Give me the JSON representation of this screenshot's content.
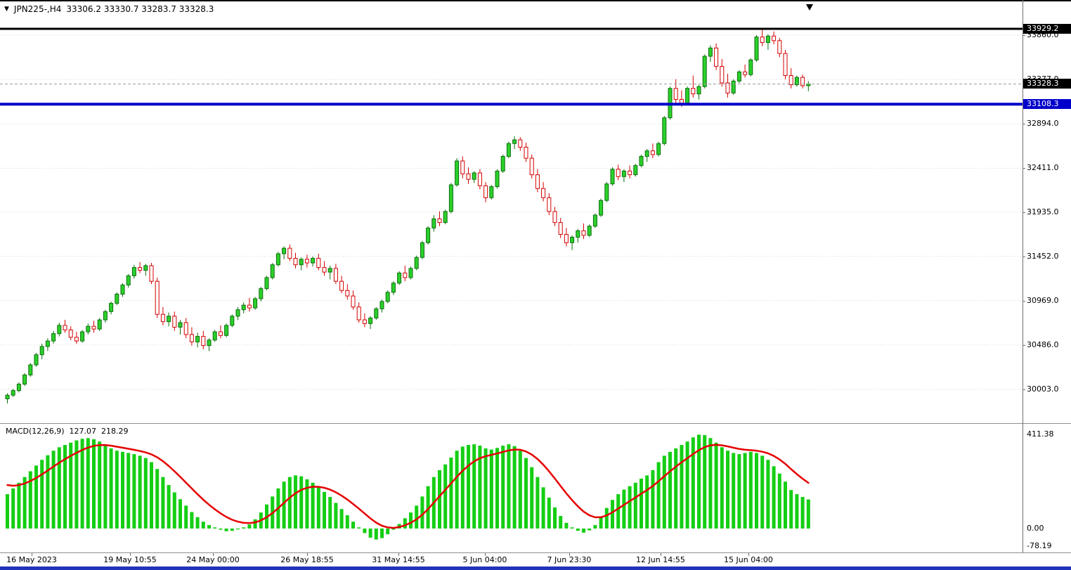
{
  "header": {
    "symbol_timeframe": "JPN225-,H4",
    "ohlc": "33306.2 33330.7 33283.7 33328.3"
  },
  "icons": {
    "symbol_dropdown": "▼"
  },
  "macd": {
    "label": "MACD(12,26,9)",
    "main_value": "127.07",
    "signal_value": "218.29",
    "axis_labels": [
      {
        "label": "411.38",
        "value": 411.38
      },
      {
        "label": "0.00",
        "value": 0
      },
      {
        "label": "-78.19",
        "value": -78.19
      }
    ]
  },
  "price_axis": {
    "grid": [
      {
        "label": "33860.0",
        "value": 33860
      },
      {
        "label": "33377.0",
        "value": 33377
      },
      {
        "label": "32894.0",
        "value": 32894
      },
      {
        "label": "32411.0",
        "value": 32411
      },
      {
        "label": "31935.0",
        "value": 31935
      },
      {
        "label": "31452.0",
        "value": 31452
      },
      {
        "label": "30969.0",
        "value": 30969
      },
      {
        "label": "30486.0",
        "value": 30486
      },
      {
        "label": "30003.0",
        "value": 30003
      }
    ],
    "badges": [
      {
        "label": "33929.2",
        "value": 33929.2,
        "bg": "#000000",
        "name": "resistance-price-badge"
      },
      {
        "label": "33328.3",
        "value": 33328.3,
        "bg": "#000000",
        "name": "current-price-badge"
      },
      {
        "label": "33108.3",
        "value": 33108.3,
        "bg": "#0000CC",
        "name": "support-price-badge"
      }
    ]
  },
  "hlines": [
    {
      "value": 33929.2,
      "color": "#000000",
      "width": 3,
      "dash": "",
      "name": "resistance-line"
    },
    {
      "value": 33328.3,
      "color": "#999999",
      "width": 1,
      "dash": "4,3",
      "name": "bid-price-line"
    },
    {
      "value": 33108.3,
      "color": "#0000CC",
      "width": 4,
      "dash": "",
      "name": "support-line"
    }
  ],
  "time_axis": {
    "ticks": [
      {
        "label": "16 May 2023",
        "x": 45
      },
      {
        "label": "19 May 10:55",
        "x": 185
      },
      {
        "label": "24 May 00:00",
        "x": 303
      },
      {
        "label": "26 May 18:55",
        "x": 437
      },
      {
        "label": "31 May 14:55",
        "x": 567
      },
      {
        "label": "5 Jun 04:00",
        "x": 690
      },
      {
        "label": "7 Jun 23:30",
        "x": 810
      },
      {
        "label": "12 Jun 14:55",
        "x": 940
      },
      {
        "label": "15 Jun 04:00",
        "x": 1065
      }
    ]
  },
  "chart_data": [
    {
      "type": "candlestick",
      "title": "JPN225-,H4",
      "symbol": "JPN225-",
      "timeframe": "H4",
      "current_bar": {
        "open": 33306.2,
        "high": 33330.7,
        "low": 33283.7,
        "close": 33328.3
      },
      "ylim": [
        29850,
        33960
      ],
      "y_ticks": [
        33860,
        33377,
        32894,
        32411,
        31935,
        31452,
        30969,
        30486,
        30003
      ],
      "grid": "horizontal-dotted",
      "candles_format": [
        "open",
        "high",
        "low",
        "close"
      ],
      "candles": [
        [
          29900,
          29960,
          29850,
          29940
        ],
        [
          29940,
          30010,
          29920,
          29990
        ],
        [
          29990,
          30080,
          29970,
          30060
        ],
        [
          30060,
          30180,
          30040,
          30160
        ],
        [
          30160,
          30290,
          30140,
          30270
        ],
        [
          30270,
          30400,
          30250,
          30380
        ],
        [
          30380,
          30500,
          30330,
          30470
        ],
        [
          30470,
          30560,
          30420,
          30530
        ],
        [
          30530,
          30640,
          30500,
          30610
        ],
        [
          30610,
          30730,
          30580,
          30700
        ],
        [
          30700,
          30760,
          30620,
          30650
        ],
        [
          30650,
          30690,
          30540,
          30570
        ],
        [
          30570,
          30630,
          30500,
          30530
        ],
        [
          30530,
          30650,
          30510,
          30630
        ],
        [
          30630,
          30720,
          30600,
          30690
        ],
        [
          30690,
          30750,
          30620,
          30660
        ],
        [
          30660,
          30780,
          30640,
          30760
        ],
        [
          30760,
          30870,
          30730,
          30850
        ],
        [
          30850,
          30960,
          30820,
          30940
        ],
        [
          30940,
          31060,
          30920,
          31040
        ],
        [
          31040,
          31160,
          31010,
          31140
        ],
        [
          31140,
          31260,
          31110,
          31240
        ],
        [
          31240,
          31360,
          31210,
          31330
        ],
        [
          31330,
          31390,
          31270,
          31300
        ],
        [
          31300,
          31370,
          31240,
          31350
        ],
        [
          31350,
          31380,
          31150,
          31180
        ],
        [
          31180,
          31220,
          30780,
          30820
        ],
        [
          30820,
          30900,
          30700,
          30740
        ],
        [
          30740,
          30840,
          30690,
          30800
        ],
        [
          30800,
          30850,
          30640,
          30680
        ],
        [
          30680,
          30760,
          30600,
          30730
        ],
        [
          30730,
          30780,
          30560,
          30600
        ],
        [
          30600,
          30680,
          30480,
          30520
        ],
        [
          30520,
          30620,
          30460,
          30580
        ],
        [
          30580,
          30640,
          30440,
          30480
        ],
        [
          30480,
          30560,
          30420,
          30540
        ],
        [
          30540,
          30650,
          30520,
          30630
        ],
        [
          30630,
          30700,
          30560,
          30590
        ],
        [
          30590,
          30720,
          30570,
          30700
        ],
        [
          30700,
          30820,
          30680,
          30800
        ],
        [
          30800,
          30900,
          30760,
          30870
        ],
        [
          30870,
          30950,
          30830,
          30920
        ],
        [
          30920,
          31000,
          30850,
          30890
        ],
        [
          30890,
          31010,
          30870,
          30990
        ],
        [
          30990,
          31120,
          30960,
          31100
        ],
        [
          31100,
          31240,
          31080,
          31220
        ],
        [
          31220,
          31380,
          31200,
          31360
        ],
        [
          31360,
          31500,
          31340,
          31480
        ],
        [
          31480,
          31560,
          31420,
          31540
        ],
        [
          31540,
          31580,
          31400,
          31430
        ],
        [
          31430,
          31490,
          31320,
          31360
        ],
        [
          31360,
          31440,
          31300,
          31420
        ],
        [
          31420,
          31470,
          31330,
          31380
        ],
        [
          31380,
          31450,
          31340,
          31430
        ],
        [
          31430,
          31480,
          31300,
          31330
        ],
        [
          31330,
          31400,
          31240,
          31280
        ],
        [
          31280,
          31350,
          31200,
          31320
        ],
        [
          31320,
          31370,
          31150,
          31180
        ],
        [
          31180,
          31240,
          31050,
          31080
        ],
        [
          31080,
          31150,
          30980,
          31020
        ],
        [
          31020,
          31080,
          30870,
          30900
        ],
        [
          30900,
          30950,
          30730,
          30760
        ],
        [
          30760,
          30830,
          30680,
          30720
        ],
        [
          30720,
          30800,
          30660,
          30780
        ],
        [
          30780,
          30900,
          30760,
          30880
        ],
        [
          30880,
          30980,
          30840,
          30960
        ],
        [
          30960,
          31080,
          30940,
          31060
        ],
        [
          31060,
          31180,
          31030,
          31160
        ],
        [
          31160,
          31290,
          31140,
          31270
        ],
        [
          31270,
          31350,
          31180,
          31220
        ],
        [
          31220,
          31340,
          31200,
          31320
        ],
        [
          31320,
          31460,
          31300,
          31440
        ],
        [
          31440,
          31620,
          31420,
          31600
        ],
        [
          31600,
          31780,
          31580,
          31760
        ],
        [
          31760,
          31900,
          31720,
          31860
        ],
        [
          31860,
          31940,
          31780,
          31820
        ],
        [
          31820,
          31960,
          31800,
          31940
        ],
        [
          31940,
          32250,
          31920,
          32230
        ],
        [
          32230,
          32520,
          32210,
          32490
        ],
        [
          32490,
          32540,
          32300,
          32350
        ],
        [
          32350,
          32420,
          32240,
          32290
        ],
        [
          32290,
          32380,
          32250,
          32360
        ],
        [
          32360,
          32400,
          32180,
          32220
        ],
        [
          32220,
          32260,
          32040,
          32090
        ],
        [
          32090,
          32230,
          32070,
          32210
        ],
        [
          32210,
          32400,
          32190,
          32380
        ],
        [
          32380,
          32560,
          32360,
          32540
        ],
        [
          32540,
          32700,
          32520,
          32680
        ],
        [
          32680,
          32760,
          32620,
          32720
        ],
        [
          32720,
          32750,
          32600,
          32640
        ],
        [
          32640,
          32690,
          32480,
          32520
        ],
        [
          32520,
          32560,
          32300,
          32340
        ],
        [
          32340,
          32400,
          32150,
          32190
        ],
        [
          32190,
          32260,
          32050,
          32090
        ],
        [
          32090,
          32140,
          31900,
          31940
        ],
        [
          31940,
          31990,
          31780,
          31820
        ],
        [
          31820,
          31870,
          31650,
          31690
        ],
        [
          31690,
          31760,
          31560,
          31600
        ],
        [
          31600,
          31680,
          31520,
          31660
        ],
        [
          31660,
          31750,
          31600,
          31730
        ],
        [
          31730,
          31810,
          31640,
          31680
        ],
        [
          31680,
          31800,
          31660,
          31780
        ],
        [
          31780,
          31920,
          31760,
          31900
        ],
        [
          31900,
          32080,
          31880,
          32060
        ],
        [
          32060,
          32260,
          32040,
          32240
        ],
        [
          32240,
          32420,
          32220,
          32400
        ],
        [
          32400,
          32450,
          32280,
          32320
        ],
        [
          32320,
          32400,
          32260,
          32380
        ],
        [
          32380,
          32440,
          32300,
          32340
        ],
        [
          32340,
          32460,
          32320,
          32440
        ],
        [
          32440,
          32560,
          32420,
          32540
        ],
        [
          32540,
          32620,
          32480,
          32600
        ],
        [
          32600,
          32680,
          32520,
          32560
        ],
        [
          32560,
          32700,
          32540,
          32680
        ],
        [
          32680,
          32980,
          32660,
          32960
        ],
        [
          32960,
          33300,
          32940,
          33280
        ],
        [
          33280,
          33380,
          33120,
          33160
        ],
        [
          33160,
          33260,
          33080,
          33120
        ],
        [
          33120,
          33300,
          33100,
          33280
        ],
        [
          33280,
          33420,
          33180,
          33220
        ],
        [
          33220,
          33320,
          33160,
          33300
        ],
        [
          33300,
          33650,
          33280,
          33630
        ],
        [
          33630,
          33750,
          33570,
          33720
        ],
        [
          33720,
          33770,
          33480,
          33520
        ],
        [
          33520,
          33600,
          33300,
          33340
        ],
        [
          33340,
          33440,
          33180,
          33230
        ],
        [
          33230,
          33380,
          33210,
          33360
        ],
        [
          33360,
          33480,
          33340,
          33460
        ],
        [
          33460,
          33540,
          33400,
          33430
        ],
        [
          33430,
          33610,
          33410,
          33590
        ],
        [
          33590,
          33860,
          33570,
          33840
        ],
        [
          33840,
          33929.2,
          33740,
          33780
        ],
        [
          33780,
          33870,
          33700,
          33850
        ],
        [
          33850,
          33900,
          33760,
          33800
        ],
        [
          33800,
          33830,
          33620,
          33660
        ],
        [
          33660,
          33700,
          33380,
          33420
        ],
        [
          33420,
          33500,
          33280,
          33320
        ],
        [
          33320,
          33420,
          33300,
          33400
        ],
        [
          33400,
          33430,
          33280,
          33310
        ],
        [
          33310,
          33360,
          33250,
          33328.3
        ]
      ]
    },
    {
      "type": "bar",
      "title": "MACD(12,26,9)",
      "ylim": [
        -78.19,
        411.38
      ],
      "current_main": 127.07,
      "current_signal": 218.29,
      "signal_period": 9,
      "values": [
        150,
        175,
        200,
        225,
        250,
        275,
        300,
        320,
        340,
        355,
        365,
        375,
        385,
        392,
        395,
        390,
        380,
        365,
        350,
        340,
        335,
        330,
        325,
        318,
        308,
        290,
        260,
        225,
        190,
        158,
        128,
        100,
        72,
        50,
        30,
        15,
        5,
        -5,
        -12,
        -10,
        -4,
        5,
        18,
        40,
        70,
        105,
        140,
        175,
        205,
        225,
        232,
        228,
        215,
        200,
        182,
        160,
        138,
        112,
        85,
        58,
        30,
        5,
        -20,
        -40,
        -48,
        -42,
        -25,
        -5,
        20,
        45,
        70,
        100,
        140,
        185,
        225,
        255,
        280,
        310,
        340,
        358,
        365,
        368,
        362,
        350,
        345,
        352,
        362,
        368,
        360,
        340,
        308,
        268,
        225,
        180,
        135,
        92,
        55,
        25,
        5,
        -10,
        -18,
        -8,
        15,
        50,
        90,
        125,
        150,
        170,
        185,
        200,
        218,
        232,
        255,
        290,
        318,
        335,
        350,
        365,
        380,
        398,
        410,
        408,
        395,
        375,
        355,
        340,
        330,
        325,
        330,
        335,
        330,
        318,
        300,
        272,
        240,
        205,
        168,
        150,
        138,
        127.07
      ]
    }
  ],
  "colors": {
    "up_fill": "#2BD02B",
    "up_stroke": "#0B6E0B",
    "down_fill": "#FFFFFF",
    "down_stroke": "#D40000",
    "macd_bar": "#14CE14",
    "macd_signal": "#E60000",
    "grid": "#CFCFCF",
    "bottom_bar": "#2233BB",
    "badge_text": "#FFFFFF"
  }
}
